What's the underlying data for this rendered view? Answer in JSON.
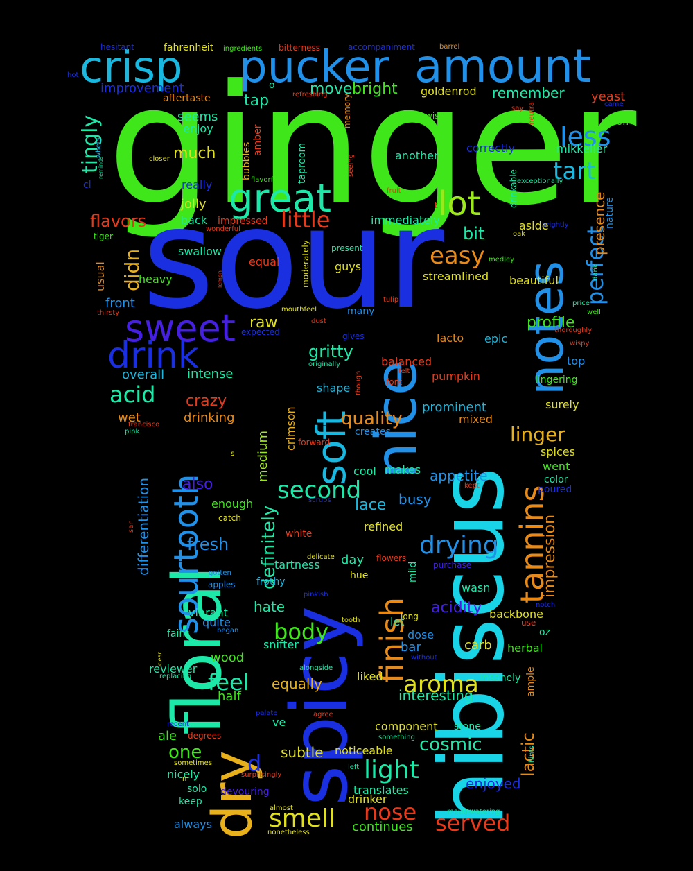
{
  "palette": {
    "background": "#000000",
    "green": "#3ee61a",
    "blue": "#1a2fe0",
    "cyan": "#18d4e6",
    "sky": "#2090e8",
    "indigo": "#4520e0",
    "teal": "#1ee8a8",
    "lime": "#9de81a",
    "yellow": "#e0e020",
    "orange": "#e88a1a",
    "gold": "#e8b01a",
    "red": "#e83a1a",
    "aqua": "#18b8e0"
  },
  "words": [
    {
      "text": "ginger",
      "color": "green"
    },
    {
      "text": "sour",
      "color": "blue"
    },
    {
      "text": "hibiscus",
      "color": "cyan"
    },
    {
      "text": "spicy",
      "color": "blue"
    },
    {
      "text": "floral",
      "color": "teal"
    },
    {
      "text": "notes",
      "color": "sky"
    },
    {
      "text": "nice",
      "color": "sky"
    },
    {
      "text": "dry",
      "color": "gold"
    },
    {
      "text": "pucker",
      "color": "sky"
    },
    {
      "text": "amount",
      "color": "sky"
    },
    {
      "text": "crisp",
      "color": "aqua"
    },
    {
      "text": "great",
      "color": "teal"
    },
    {
      "text": "soft",
      "color": "aqua"
    },
    {
      "text": "finish",
      "color": "orange"
    },
    {
      "text": "tannins",
      "color": "orange"
    },
    {
      "text": "sourtooth",
      "color": "sky"
    },
    {
      "text": "sweet",
      "color": "indigo"
    },
    {
      "text": "drink",
      "color": "blue"
    },
    {
      "text": "lot",
      "color": "lime"
    },
    {
      "text": "less",
      "color": "sky"
    },
    {
      "text": "tart",
      "color": "aqua"
    },
    {
      "text": "little",
      "color": "red"
    },
    {
      "text": "easy",
      "color": "orange"
    },
    {
      "text": "perfect",
      "color": "sky"
    },
    {
      "text": "tingly",
      "color": "teal"
    },
    {
      "text": "didn",
      "color": "gold"
    },
    {
      "text": "acid",
      "color": "teal"
    },
    {
      "text": "drying",
      "color": "sky"
    },
    {
      "text": "second",
      "color": "teal"
    },
    {
      "text": "aroma",
      "color": "yellow"
    },
    {
      "text": "smell",
      "color": "yellow"
    },
    {
      "text": "light",
      "color": "teal"
    },
    {
      "text": "definitely",
      "color": "teal"
    },
    {
      "text": "served",
      "color": "red"
    },
    {
      "text": "nose",
      "color": "red"
    },
    {
      "text": "feel",
      "color": "teal"
    },
    {
      "text": "body",
      "color": "green"
    },
    {
      "text": "linger",
      "color": "gold"
    },
    {
      "text": "quality",
      "color": "orange"
    },
    {
      "text": "gritty",
      "color": "teal"
    },
    {
      "text": "profile",
      "color": "green"
    },
    {
      "text": "raw",
      "color": "yellow"
    },
    {
      "text": "cosmic",
      "color": "teal"
    },
    {
      "text": "impression",
      "color": "orange"
    },
    {
      "text": "lactic",
      "color": "orange"
    },
    {
      "text": "presence",
      "color": "orange"
    },
    {
      "text": "fresh",
      "color": "sky"
    },
    {
      "text": "one",
      "color": "green"
    },
    {
      "text": "d",
      "color": "blue"
    },
    {
      "text": "crazy",
      "color": "red"
    },
    {
      "text": "flavors",
      "color": "red"
    },
    {
      "text": "much",
      "color": "yellow"
    },
    {
      "text": "bright",
      "color": "green"
    },
    {
      "text": "move",
      "color": "teal"
    },
    {
      "text": "tap",
      "color": "teal"
    },
    {
      "text": "remember",
      "color": "teal"
    },
    {
      "text": "improvement",
      "color": "blue"
    },
    {
      "text": "bit",
      "color": "teal"
    },
    {
      "text": "medium",
      "color": "lime"
    },
    {
      "text": "crimson",
      "color": "gold"
    },
    {
      "text": "differentiation",
      "color": "sky"
    },
    {
      "text": "also",
      "color": "indigo"
    },
    {
      "text": "lace",
      "color": "aqua"
    },
    {
      "text": "acidity",
      "color": "indigo"
    },
    {
      "text": "enjoyed",
      "color": "blue"
    },
    {
      "text": "equally",
      "color": "gold"
    },
    {
      "text": "interesting",
      "color": "teal"
    },
    {
      "text": "appetite",
      "color": "sky"
    },
    {
      "text": "busy",
      "color": "sky"
    },
    {
      "text": "prominent",
      "color": "aqua"
    },
    {
      "text": "subtle",
      "color": "yellow"
    },
    {
      "text": "noticeable",
      "color": "yellow"
    },
    {
      "text": "hate",
      "color": "teal"
    },
    {
      "text": "overall",
      "color": "aqua"
    },
    {
      "text": "intense",
      "color": "teal"
    },
    {
      "text": "drinking",
      "color": "orange"
    },
    {
      "text": "wet",
      "color": "orange"
    },
    {
      "text": "front",
      "color": "sky"
    },
    {
      "text": "usual",
      "color": "orange"
    },
    {
      "text": "heavy",
      "color": "green"
    },
    {
      "text": "swallow",
      "color": "teal"
    },
    {
      "text": "back",
      "color": "teal"
    },
    {
      "text": "jolly",
      "color": "yellow"
    },
    {
      "text": "really",
      "color": "blue"
    },
    {
      "text": "enjoy",
      "color": "teal"
    },
    {
      "text": "seems",
      "color": "teal"
    },
    {
      "text": "immediately",
      "color": "teal"
    },
    {
      "text": "streamlined",
      "color": "yellow"
    },
    {
      "text": "beautiful",
      "color": "yellow"
    },
    {
      "text": "balanced",
      "color": "red"
    },
    {
      "text": "lacto",
      "color": "orange"
    },
    {
      "text": "epic",
      "color": "aqua"
    },
    {
      "text": "pumpkin",
      "color": "red"
    },
    {
      "text": "shape",
      "color": "aqua"
    },
    {
      "text": "mixed",
      "color": "orange"
    },
    {
      "text": "surely",
      "color": "yellow"
    },
    {
      "text": "spices",
      "color": "yellow"
    },
    {
      "text": "went",
      "color": "green"
    },
    {
      "text": "color",
      "color": "teal"
    },
    {
      "text": "poured",
      "color": "blue"
    },
    {
      "text": "makes",
      "color": "teal"
    },
    {
      "text": "cool",
      "color": "teal"
    },
    {
      "text": "refined",
      "color": "yellow"
    },
    {
      "text": "enough",
      "color": "green"
    },
    {
      "text": "tartness",
      "color": "teal"
    },
    {
      "text": "day",
      "color": "teal"
    },
    {
      "text": "frothy",
      "color": "aqua"
    },
    {
      "text": "vibrant",
      "color": "teal"
    },
    {
      "text": "quite",
      "color": "sky"
    },
    {
      "text": "faint",
      "color": "teal"
    },
    {
      "text": "snifter",
      "color": "teal"
    },
    {
      "text": "dose",
      "color": "sky"
    },
    {
      "text": "bar",
      "color": "sky"
    },
    {
      "text": "carb",
      "color": "yellow"
    },
    {
      "text": "herbal",
      "color": "green"
    },
    {
      "text": "backbone",
      "color": "yellow"
    },
    {
      "text": "wasn",
      "color": "teal"
    },
    {
      "text": "wood",
      "color": "green"
    },
    {
      "text": "reviewer",
      "color": "teal"
    },
    {
      "text": "liked",
      "color": "yellow"
    },
    {
      "text": "half",
      "color": "green"
    },
    {
      "text": "ale",
      "color": "green"
    },
    {
      "text": "component",
      "color": "yellow"
    },
    {
      "text": "stone",
      "color": "teal"
    },
    {
      "text": "translates",
      "color": "teal"
    },
    {
      "text": "drinker",
      "color": "yellow"
    },
    {
      "text": "continues",
      "color": "green"
    },
    {
      "text": "nicely",
      "color": "teal"
    },
    {
      "text": "solo",
      "color": "teal"
    },
    {
      "text": "keep",
      "color": "teal"
    },
    {
      "text": "always",
      "color": "sky"
    },
    {
      "text": "devouring",
      "color": "indigo"
    },
    {
      "text": "ve",
      "color": "teal"
    },
    {
      "text": "goldenrod",
      "color": "yellow"
    },
    {
      "text": "yeast",
      "color": "red"
    },
    {
      "text": "mikkeller",
      "color": "teal"
    },
    {
      "text": "correctly",
      "color": "blue"
    },
    {
      "text": "another",
      "color": "teal"
    },
    {
      "text": "aside",
      "color": "yellow"
    },
    {
      "text": "top",
      "color": "sky"
    },
    {
      "text": "union",
      "color": "green"
    },
    {
      "text": "nature",
      "color": "sky"
    },
    {
      "text": "bubbles",
      "color": "gold"
    },
    {
      "text": "amber",
      "color": "red"
    },
    {
      "text": "taproom",
      "color": "teal"
    },
    {
      "text": "memory",
      "color": "orange"
    },
    {
      "text": "drinkable",
      "color": "teal"
    },
    {
      "text": "fahrenheit",
      "color": "yellow"
    },
    {
      "text": "bitterness",
      "color": "red"
    },
    {
      "text": "accompaniment",
      "color": "blue"
    },
    {
      "text": "hesitant",
      "color": "blue"
    },
    {
      "text": "aftertaste",
      "color": "orange"
    },
    {
      "text": "equal",
      "color": "red"
    },
    {
      "text": "impressed",
      "color": "red"
    },
    {
      "text": "moderately",
      "color": "yellow"
    },
    {
      "text": "guys",
      "color": "yellow"
    },
    {
      "text": "many",
      "color": "sky"
    },
    {
      "text": "mild",
      "color": "teal"
    },
    {
      "text": "long",
      "color": "yellow"
    },
    {
      "text": "let",
      "color": "teal"
    },
    {
      "text": "hue",
      "color": "yellow"
    },
    {
      "text": "oz",
      "color": "teal"
    },
    {
      "text": "ample",
      "color": "orange"
    },
    {
      "text": "insanely",
      "color": "teal"
    },
    {
      "text": "lingering",
      "color": "green"
    },
    {
      "text": "creates",
      "color": "sky"
    },
    {
      "text": "forward",
      "color": "red"
    },
    {
      "text": "purchase",
      "color": "indigo"
    },
    {
      "text": "medley",
      "color": "green"
    },
    {
      "text": "o",
      "color": "teal"
    },
    {
      "text": "ingredients",
      "color": "green"
    },
    {
      "text": "barrel",
      "color": "orange"
    },
    {
      "text": "hot",
      "color": "blue"
    },
    {
      "text": "refreshing",
      "color": "red"
    },
    {
      "text": "say",
      "color": "red"
    },
    {
      "text": "neutral",
      "color": "red"
    },
    {
      "text": "came",
      "color": "blue"
    },
    {
      "text": "wish",
      "color": "green"
    },
    {
      "text": "cl",
      "color": "blue"
    },
    {
      "text": "whets",
      "color": "aqua"
    },
    {
      "text": "reminds",
      "color": "teal"
    },
    {
      "text": "closer",
      "color": "yellow"
    },
    {
      "text": "flavorful",
      "color": "green"
    },
    {
      "text": "green",
      "color": "green"
    },
    {
      "text": "seeing",
      "color": "red"
    },
    {
      "text": "fruit",
      "color": "red"
    },
    {
      "text": "exceptionally",
      "color": "teal"
    },
    {
      "text": "t",
      "color": "red"
    },
    {
      "text": "tiger",
      "color": "green"
    },
    {
      "text": "wonderful",
      "color": "red"
    },
    {
      "text": "brightly",
      "color": "blue"
    },
    {
      "text": "oak",
      "color": "yellow"
    },
    {
      "text": "present",
      "color": "teal"
    },
    {
      "text": "lemon",
      "color": "red"
    },
    {
      "text": "dank",
      "color": "teal"
    },
    {
      "text": "thirsty",
      "color": "red"
    },
    {
      "text": "tulip",
      "color": "red"
    },
    {
      "text": "mouthfeel",
      "color": "yellow"
    },
    {
      "text": "dust",
      "color": "red"
    },
    {
      "text": "price",
      "color": "teal"
    },
    {
      "text": "well",
      "color": "green"
    },
    {
      "text": "thoroughly",
      "color": "red"
    },
    {
      "text": "wispy",
      "color": "red"
    },
    {
      "text": "expected",
      "color": "blue"
    },
    {
      "text": "gives",
      "color": "blue"
    },
    {
      "text": "originally",
      "color": "teal"
    },
    {
      "text": "felt",
      "color": "red"
    },
    {
      "text": "though",
      "color": "red"
    },
    {
      "text": "fork",
      "color": "red"
    },
    {
      "text": "francisco",
      "color": "red"
    },
    {
      "text": "pink",
      "color": "teal"
    },
    {
      "text": "s",
      "color": "yellow"
    },
    {
      "text": "scrubs",
      "color": "blue"
    },
    {
      "text": "kept",
      "color": "red"
    },
    {
      "text": "catch",
      "color": "yellow"
    },
    {
      "text": "san",
      "color": "red"
    },
    {
      "text": "white",
      "color": "red"
    },
    {
      "text": "delicate",
      "color": "yellow"
    },
    {
      "text": "flowers",
      "color": "red"
    },
    {
      "text": "gotten",
      "color": "sky"
    },
    {
      "text": "apples",
      "color": "sky"
    },
    {
      "text": "pinkish",
      "color": "blue"
    },
    {
      "text": "tooth",
      "color": "yellow"
    },
    {
      "text": "notch",
      "color": "blue"
    },
    {
      "text": "began",
      "color": "sky"
    },
    {
      "text": "use",
      "color": "red"
    },
    {
      "text": "clear",
      "color": "yellow"
    },
    {
      "text": "replacing",
      "color": "teal"
    },
    {
      "text": "without",
      "color": "blue"
    },
    {
      "text": "alongside",
      "color": "teal"
    },
    {
      "text": "palate",
      "color": "blue"
    },
    {
      "text": "agree",
      "color": "red"
    },
    {
      "text": "recent",
      "color": "blue"
    },
    {
      "text": "degrees",
      "color": "red"
    },
    {
      "text": "something",
      "color": "teal"
    },
    {
      "text": "hints",
      "color": "teal"
    },
    {
      "text": "sometimes",
      "color": "yellow"
    },
    {
      "text": "m",
      "color": "yellow"
    },
    {
      "text": "surprisingly",
      "color": "red"
    },
    {
      "text": "left",
      "color": "teal"
    },
    {
      "text": "almost",
      "color": "yellow"
    },
    {
      "text": "nonetheless",
      "color": "yellow"
    },
    {
      "text": "mouthwatering",
      "color": "teal"
    }
  ]
}
